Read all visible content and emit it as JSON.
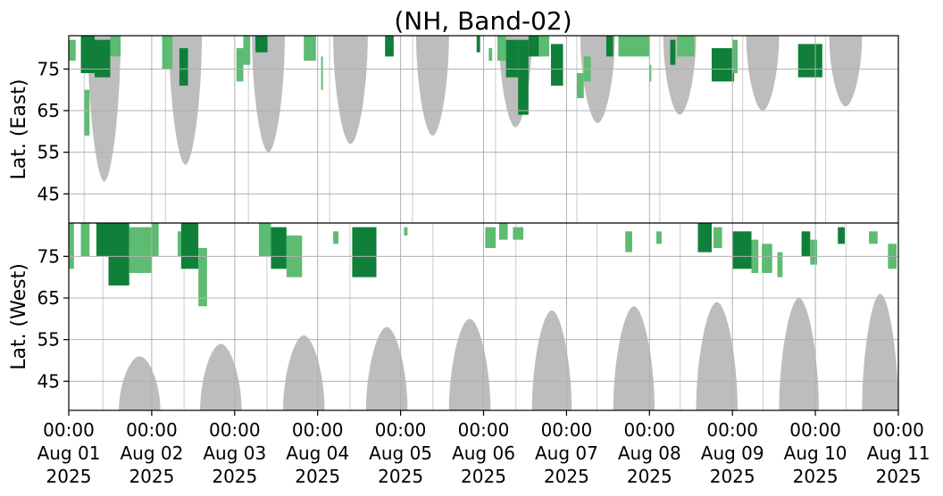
{
  "chart_data": {
    "type": "heatmap",
    "title": "(NH, Band-02)",
    "panels": [
      {
        "name": "east",
        "ylabel": "Lat. (East)",
        "yticks": [
          "45",
          "55",
          "65",
          "75"
        ],
        "ylim": [
          38,
          83
        ]
      },
      {
        "name": "west",
        "ylabel": "Lat. (West)",
        "yticks": [
          "75",
          "65",
          "55",
          "45"
        ],
        "ylim": [
          83,
          38
        ]
      }
    ],
    "x_ticks": [
      {
        "time": "00:00",
        "date": "Aug 01",
        "year": "2025"
      },
      {
        "time": "00:00",
        "date": "Aug 02",
        "year": "2025"
      },
      {
        "time": "00:00",
        "date": "Aug 03",
        "year": "2025"
      },
      {
        "time": "00:00",
        "date": "Aug 04",
        "year": "2025"
      },
      {
        "time": "00:00",
        "date": "Aug 05",
        "year": "2025"
      },
      {
        "time": "00:00",
        "date": "Aug 06",
        "year": "2025"
      },
      {
        "time": "00:00",
        "date": "Aug 07",
        "year": "2025"
      },
      {
        "time": "00:00",
        "date": "Aug 08",
        "year": "2025"
      },
      {
        "time": "00:00",
        "date": "Aug 09",
        "year": "2025"
      },
      {
        "time": "00:00",
        "date": "Aug 10",
        "year": "2025"
      },
      {
        "time": "00:00",
        "date": "Aug 11",
        "year": "2025"
      }
    ],
    "xlim": [
      "2025-08-01 00:00",
      "2025-08-11 00:00"
    ],
    "grid": true,
    "colors": {
      "strong": "#0f7f3a",
      "weak": "#5dbb72",
      "night": "#bdbdbd"
    },
    "night_shading_east": [
      {
        "start": "2025-08-01 05:30",
        "end": "2025-08-01 15:00",
        "min_lat": 48
      },
      {
        "start": "2025-08-02 05:00",
        "end": "2025-08-02 14:30",
        "min_lat": 52
      },
      {
        "start": "2025-08-03 05:00",
        "end": "2025-08-03 14:30",
        "min_lat": 55
      },
      {
        "start": "2025-08-04 04:30",
        "end": "2025-08-04 14:30",
        "min_lat": 57
      },
      {
        "start": "2025-08-05 04:30",
        "end": "2025-08-05 14:00",
        "min_lat": 59
      },
      {
        "start": "2025-08-06 04:30",
        "end": "2025-08-06 14:00",
        "min_lat": 61
      },
      {
        "start": "2025-08-07 04:00",
        "end": "2025-08-07 14:00",
        "min_lat": 62
      },
      {
        "start": "2025-08-08 04:00",
        "end": "2025-08-08 13:30",
        "min_lat": 64
      },
      {
        "start": "2025-08-09 04:00",
        "end": "2025-08-09 13:30",
        "min_lat": 65
      },
      {
        "start": "2025-08-10 04:00",
        "end": "2025-08-10 13:30",
        "min_lat": 66
      }
    ],
    "night_shading_west": [
      {
        "start": "2025-08-01 14:30",
        "end": "2025-08-02 02:30",
        "min_lat": 51
      },
      {
        "start": "2025-08-02 14:00",
        "end": "2025-08-03 02:00",
        "min_lat": 54
      },
      {
        "start": "2025-08-03 14:00",
        "end": "2025-08-04 02:00",
        "min_lat": 56
      },
      {
        "start": "2025-08-04 14:00",
        "end": "2025-08-05 02:00",
        "min_lat": 58
      },
      {
        "start": "2025-08-05 14:00",
        "end": "2025-08-06 02:00",
        "min_lat": 60
      },
      {
        "start": "2025-08-06 14:00",
        "end": "2025-08-07 01:30",
        "min_lat": 62
      },
      {
        "start": "2025-08-07 13:30",
        "end": "2025-08-08 01:30",
        "min_lat": 63
      },
      {
        "start": "2025-08-08 13:30",
        "end": "2025-08-09 01:30",
        "min_lat": 64
      },
      {
        "start": "2025-08-09 13:30",
        "end": "2025-08-10 01:00",
        "min_lat": 65
      },
      {
        "start": "2025-08-10 13:30",
        "end": "2025-08-11 00:00",
        "min_lat": 66
      }
    ],
    "activity_east": [
      {
        "start": "2025-08-01 00:00",
        "end": "2025-08-01 02:00",
        "lat_low": 77,
        "lat_high": 82,
        "level": "weak"
      },
      {
        "start": "2025-08-01 03:30",
        "end": "2025-08-01 07:30",
        "lat_low": 74,
        "lat_high": 83,
        "level": "strong"
      },
      {
        "start": "2025-08-01 04:30",
        "end": "2025-08-01 06:00",
        "lat_low": 59,
        "lat_high": 70,
        "level": "weak"
      },
      {
        "start": "2025-08-01 07:30",
        "end": "2025-08-01 12:00",
        "lat_low": 73,
        "lat_high": 82,
        "level": "strong"
      },
      {
        "start": "2025-08-01 12:00",
        "end": "2025-08-01 15:00",
        "lat_low": 78,
        "lat_high": 83,
        "level": "weak"
      },
      {
        "start": "2025-08-02 03:00",
        "end": "2025-08-02 06:00",
        "lat_low": 75,
        "lat_high": 83,
        "level": "weak"
      },
      {
        "start": "2025-08-02 08:00",
        "end": "2025-08-02 10:30",
        "lat_low": 71,
        "lat_high": 80,
        "level": "strong"
      },
      {
        "start": "2025-08-03 00:30",
        "end": "2025-08-03 02:30",
        "lat_low": 72,
        "lat_high": 80,
        "level": "weak"
      },
      {
        "start": "2025-08-03 02:30",
        "end": "2025-08-03 04:30",
        "lat_low": 76,
        "lat_high": 83,
        "level": "weak"
      },
      {
        "start": "2025-08-03 06:00",
        "end": "2025-08-03 09:30",
        "lat_low": 79,
        "lat_high": 83,
        "level": "strong"
      },
      {
        "start": "2025-08-03 20:00",
        "end": "2025-08-03 23:30",
        "lat_low": 77,
        "lat_high": 83,
        "level": "weak"
      },
      {
        "start": "2025-08-04 01:00",
        "end": "2025-08-04 01:30",
        "lat_low": 70,
        "lat_high": 78,
        "level": "weak"
      },
      {
        "start": "2025-08-04 19:30",
        "end": "2025-08-04 22:00",
        "lat_low": 78,
        "lat_high": 83,
        "level": "strong"
      },
      {
        "start": "2025-08-05 22:00",
        "end": "2025-08-05 23:00",
        "lat_low": 79,
        "lat_high": 83,
        "level": "strong"
      },
      {
        "start": "2025-08-06 01:30",
        "end": "2025-08-06 02:30",
        "lat_low": 77,
        "lat_high": 80,
        "level": "weak"
      },
      {
        "start": "2025-08-06 04:00",
        "end": "2025-08-06 06:30",
        "lat_low": 77,
        "lat_high": 83,
        "level": "weak"
      },
      {
        "start": "2025-08-06 06:30",
        "end": "2025-08-06 10:00",
        "lat_low": 73,
        "lat_high": 82,
        "level": "strong"
      },
      {
        "start": "2025-08-06 10:00",
        "end": "2025-08-06 13:00",
        "lat_low": 64,
        "lat_high": 82,
        "level": "strong"
      },
      {
        "start": "2025-08-06 13:00",
        "end": "2025-08-06 16:00",
        "lat_low": 78,
        "lat_high": 83,
        "level": "strong"
      },
      {
        "start": "2025-08-06 16:00",
        "end": "2025-08-06 19:00",
        "lat_low": 78,
        "lat_high": 83,
        "level": "weak"
      },
      {
        "start": "2025-08-06 19:30",
        "end": "2025-08-06 23:00",
        "lat_low": 71,
        "lat_high": 81,
        "level": "strong"
      },
      {
        "start": "2025-08-07 03:00",
        "end": "2025-08-07 05:00",
        "lat_low": 68,
        "lat_high": 74,
        "level": "weak"
      },
      {
        "start": "2025-08-07 05:00",
        "end": "2025-08-07 07:00",
        "lat_low": 72,
        "lat_high": 78,
        "level": "weak"
      },
      {
        "start": "2025-08-07 11:30",
        "end": "2025-08-07 13:30",
        "lat_low": 78,
        "lat_high": 83,
        "level": "strong"
      },
      {
        "start": "2025-08-07 15:00",
        "end": "2025-08-08 00:00",
        "lat_low": 78,
        "lat_high": 83,
        "level": "weak"
      },
      {
        "start": "2025-08-08 00:00",
        "end": "2025-08-08 00:30",
        "lat_low": 72,
        "lat_high": 76,
        "level": "weak"
      },
      {
        "start": "2025-08-08 06:00",
        "end": "2025-08-08 07:30",
        "lat_low": 76,
        "lat_high": 82,
        "level": "strong"
      },
      {
        "start": "2025-08-08 08:00",
        "end": "2025-08-08 13:00",
        "lat_low": 78,
        "lat_high": 83,
        "level": "weak"
      },
      {
        "start": "2025-08-08 18:00",
        "end": "2025-08-09 00:30",
        "lat_low": 72,
        "lat_high": 80,
        "level": "strong"
      },
      {
        "start": "2025-08-09 00:00",
        "end": "2025-08-09 01:30",
        "lat_low": 74,
        "lat_high": 82,
        "level": "weak"
      },
      {
        "start": "2025-08-09 19:00",
        "end": "2025-08-10 02:00",
        "lat_low": 73,
        "lat_high": 81,
        "level": "strong"
      }
    ],
    "activity_west": [
      {
        "start": "2025-08-01 00:00",
        "end": "2025-08-01 01:30",
        "lat_low": 72,
        "lat_high": 83,
        "level": "weak"
      },
      {
        "start": "2025-08-01 03:30",
        "end": "2025-08-01 06:00",
        "lat_low": 75,
        "lat_high": 83,
        "level": "weak"
      },
      {
        "start": "2025-08-01 08:00",
        "end": "2025-08-01 11:30",
        "lat_low": 75,
        "lat_high": 83,
        "level": "strong"
      },
      {
        "start": "2025-08-01 11:30",
        "end": "2025-08-01 17:30",
        "lat_low": 68,
        "lat_high": 83,
        "level": "strong"
      },
      {
        "start": "2025-08-01 17:30",
        "end": "2025-08-02 00:00",
        "lat_low": 71,
        "lat_high": 82,
        "level": "weak"
      },
      {
        "start": "2025-08-02 00:00",
        "end": "2025-08-02 02:00",
        "lat_low": 75,
        "lat_high": 83,
        "level": "weak"
      },
      {
        "start": "2025-08-02 07:30",
        "end": "2025-08-02 08:30",
        "lat_low": 75,
        "lat_high": 81,
        "level": "weak"
      },
      {
        "start": "2025-08-02 08:30",
        "end": "2025-08-02 13:30",
        "lat_low": 72,
        "lat_high": 83,
        "level": "strong"
      },
      {
        "start": "2025-08-02 13:30",
        "end": "2025-08-02 16:00",
        "lat_low": 63,
        "lat_high": 77,
        "level": "weak"
      },
      {
        "start": "2025-08-03 07:00",
        "end": "2025-08-03 10:30",
        "lat_low": 75,
        "lat_high": 83,
        "level": "weak"
      },
      {
        "start": "2025-08-03 10:30",
        "end": "2025-08-03 15:00",
        "lat_low": 72,
        "lat_high": 82,
        "level": "strong"
      },
      {
        "start": "2025-08-03 15:00",
        "end": "2025-08-03 19:30",
        "lat_low": 70,
        "lat_high": 80,
        "level": "weak"
      },
      {
        "start": "2025-08-04 04:30",
        "end": "2025-08-04 06:00",
        "lat_low": 78,
        "lat_high": 81,
        "level": "weak"
      },
      {
        "start": "2025-08-04 10:00",
        "end": "2025-08-04 17:00",
        "lat_low": 70,
        "lat_high": 82,
        "level": "strong"
      },
      {
        "start": "2025-08-05 01:00",
        "end": "2025-08-05 02:00",
        "lat_low": 80,
        "lat_high": 82,
        "level": "weak"
      },
      {
        "start": "2025-08-06 00:30",
        "end": "2025-08-06 03:30",
        "lat_low": 77,
        "lat_high": 82,
        "level": "weak"
      },
      {
        "start": "2025-08-06 04:30",
        "end": "2025-08-06 07:00",
        "lat_low": 79,
        "lat_high": 83,
        "level": "weak"
      },
      {
        "start": "2025-08-06 08:30",
        "end": "2025-08-06 11:30",
        "lat_low": 79,
        "lat_high": 82,
        "level": "weak"
      },
      {
        "start": "2025-08-07 17:00",
        "end": "2025-08-07 19:00",
        "lat_low": 76,
        "lat_high": 81,
        "level": "weak"
      },
      {
        "start": "2025-08-08 02:00",
        "end": "2025-08-08 03:30",
        "lat_low": 78,
        "lat_high": 81,
        "level": "weak"
      },
      {
        "start": "2025-08-08 14:00",
        "end": "2025-08-08 18:00",
        "lat_low": 76,
        "lat_high": 83,
        "level": "strong"
      },
      {
        "start": "2025-08-08 18:30",
        "end": "2025-08-08 21:00",
        "lat_low": 77,
        "lat_high": 82,
        "level": "weak"
      },
      {
        "start": "2025-08-09 00:00",
        "end": "2025-08-09 05:30",
        "lat_low": 72,
        "lat_high": 81,
        "level": "strong"
      },
      {
        "start": "2025-08-09 05:30",
        "end": "2025-08-09 07:30",
        "lat_low": 71,
        "lat_high": 79,
        "level": "weak"
      },
      {
        "start": "2025-08-09 08:30",
        "end": "2025-08-09 11:30",
        "lat_low": 71,
        "lat_high": 78,
        "level": "weak"
      },
      {
        "start": "2025-08-09 13:00",
        "end": "2025-08-09 14:30",
        "lat_low": 70,
        "lat_high": 76,
        "level": "weak"
      },
      {
        "start": "2025-08-09 20:00",
        "end": "2025-08-09 22:30",
        "lat_low": 75,
        "lat_high": 81,
        "level": "strong"
      },
      {
        "start": "2025-08-09 22:30",
        "end": "2025-08-10 00:30",
        "lat_low": 73,
        "lat_high": 79,
        "level": "weak"
      },
      {
        "start": "2025-08-10 06:30",
        "end": "2025-08-10 08:30",
        "lat_low": 78,
        "lat_high": 82,
        "level": "strong"
      },
      {
        "start": "2025-08-10 15:30",
        "end": "2025-08-10 18:00",
        "lat_low": 78,
        "lat_high": 81,
        "level": "weak"
      },
      {
        "start": "2025-08-10 21:00",
        "end": "2025-08-10 23:30",
        "lat_low": 72,
        "lat_high": 78,
        "level": "weak"
      }
    ]
  }
}
